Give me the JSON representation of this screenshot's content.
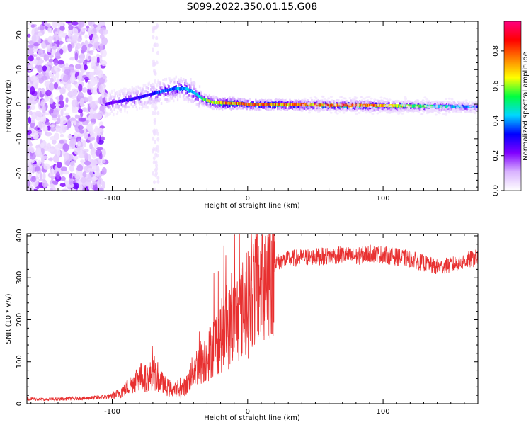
{
  "title": "S099.2022.350.01.15.G08",
  "chart_data": [
    {
      "type": "heatmap",
      "title": "",
      "xlabel": "Height of straight line (km)",
      "ylabel": "Frequency (Hz)",
      "xlim": [
        -163,
        170
      ],
      "ylim": [
        -25,
        24
      ],
      "xticks": [
        -100,
        0,
        100
      ],
      "yticks": [
        -20,
        -10,
        0,
        10,
        20
      ],
      "colorbar": {
        "label": "Normalized spectral amplitude",
        "range": [
          0,
          0.97
        ],
        "ticks": [
          0.0,
          0.2,
          0.4,
          0.6,
          0.8
        ],
        "colormap": [
          "#ffffff",
          "#d9b3ff",
          "#8000ff",
          "#0000ff",
          "#00d8ff",
          "#00ff40",
          "#ffff00",
          "#ff8000",
          "#ff0000",
          "#ff0080"
        ]
      },
      "features": [
        {
          "region": "noise",
          "x_range": [
            -163,
            -105
          ],
          "freq_range": [
            -25,
            24
          ],
          "amplitude": 0.05
        },
        {
          "region": "ridge",
          "x": [
            -105,
            -95,
            -85,
            -75,
            -65,
            -55,
            -45,
            -38,
            -33,
            -25,
            -15,
            -5,
            0,
            20,
            40,
            60,
            80,
            100,
            120,
            140,
            170
          ],
          "freq": [
            0,
            0.8,
            1.5,
            2.5,
            3.5,
            4.5,
            4.5,
            3.0,
            1.5,
            0.5,
            0.3,
            0.2,
            0.0,
            -0.1,
            -0.2,
            -0.3,
            -0.3,
            -0.4,
            -0.5,
            -0.6,
            -0.8
          ],
          "amplitude": [
            0.25,
            0.3,
            0.35,
            0.35,
            0.4,
            0.45,
            0.45,
            0.55,
            0.6,
            0.75,
            0.85,
            0.85,
            0.9,
            0.85,
            0.85,
            0.85,
            0.9,
            0.8,
            0.65,
            0.55,
            0.4
          ]
        }
      ]
    },
    {
      "type": "line",
      "title": "",
      "xlabel": "Height of straight line (km)",
      "ylabel": "SNR (10 * v/v)",
      "xlim": [
        -163,
        170
      ],
      "ylim": [
        0,
        405
      ],
      "xticks": [
        -100,
        0,
        100
      ],
      "yticks": [
        0,
        100,
        200,
        300,
        400
      ],
      "series": [
        {
          "color": "#e83030",
          "x": [
            -163,
            -150,
            -140,
            -130,
            -120,
            -110,
            -100,
            -95,
            -90,
            -85,
            -80,
            -75,
            -70,
            -65,
            -60,
            -55,
            -50,
            -45,
            -40,
            -35,
            -30,
            -25,
            -20,
            -15,
            -10,
            -5,
            0,
            5,
            10,
            15,
            20,
            30,
            40,
            50,
            60,
            70,
            80,
            90,
            100,
            110,
            120,
            130,
            140,
            150,
            160,
            170
          ],
          "y": [
            12,
            10,
            11,
            12,
            13,
            15,
            18,
            25,
            35,
            50,
            65,
            60,
            70,
            55,
            40,
            35,
            30,
            45,
            80,
            100,
            110,
            140,
            160,
            175,
            195,
            220,
            235,
            270,
            300,
            320,
            335,
            345,
            348,
            350,
            352,
            355,
            350,
            358,
            355,
            350,
            345,
            335,
            325,
            330,
            340,
            348
          ]
        }
      ]
    }
  ]
}
